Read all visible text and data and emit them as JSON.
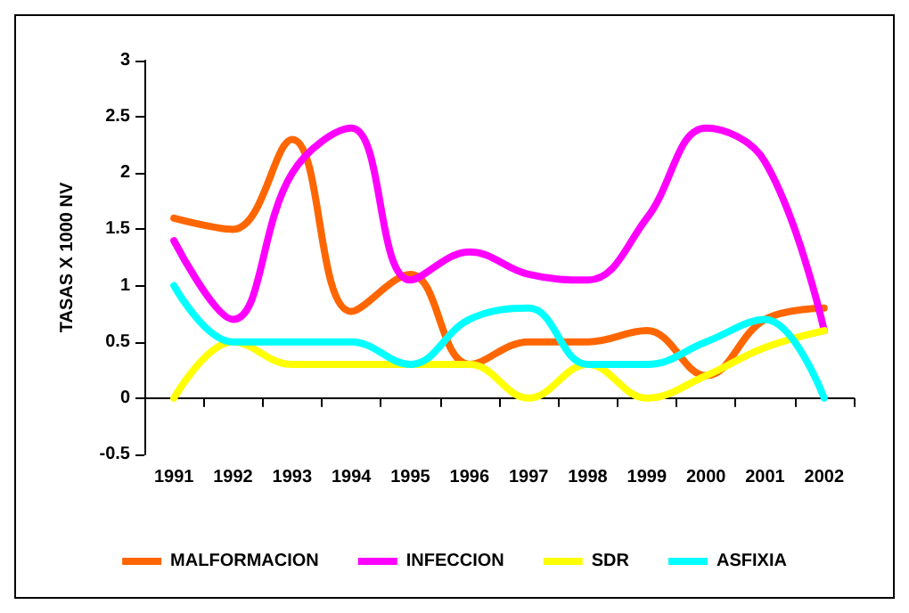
{
  "chart_data": {
    "type": "line",
    "ylabel": "TASAS X 1000 NV",
    "categories": [
      "1991",
      "1992",
      "1993",
      "1994",
      "1995",
      "1996",
      "1997",
      "1998",
      "1999",
      "2000",
      "2001",
      "2002"
    ],
    "series": [
      {
        "name": "MALFORMACION",
        "color": "#ff6600",
        "values": [
          1.6,
          1.5,
          2.3,
          0.77,
          1.1,
          0.3,
          0.5,
          0.5,
          0.6,
          0.2,
          0.7,
          0.8
        ]
      },
      {
        "name": "INFECCION",
        "color": "#ff00ff",
        "values": [
          1.4,
          0.7,
          2.0,
          2.4,
          1.05,
          1.3,
          1.1,
          1.05,
          1.6,
          2.4,
          2.1,
          0.6
        ]
      },
      {
        "name": "SDR",
        "color": "#ffff00",
        "values": [
          0,
          0.5,
          0.3,
          0.3,
          0.3,
          0.3,
          0,
          0.3,
          0,
          0.2,
          0.45,
          0.6
        ]
      },
      {
        "name": "ASFIXIA",
        "color": "#00ffff",
        "values": [
          1.0,
          0.5,
          0.5,
          0.5,
          0.3,
          0.7,
          0.8,
          0.3,
          0.3,
          0.5,
          0.7,
          0
        ]
      }
    ],
    "ylim": [
      -0.5,
      3
    ],
    "yticks": [
      -0.5,
      0,
      0.5,
      1,
      1.5,
      2,
      2.5,
      3
    ],
    "legend": "bottom",
    "marker": "none",
    "line_style": "solid"
  }
}
